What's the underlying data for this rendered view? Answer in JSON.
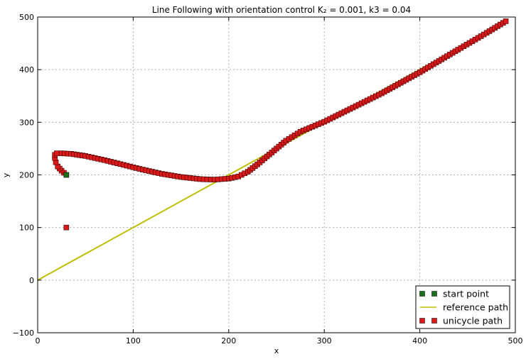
{
  "chart_data": {
    "type": "scatter",
    "title": "Line Following with orientation control K₂ = 0.001, k3 = 0.04",
    "xlabel": "x",
    "ylabel": "y",
    "xlim": [
      0,
      500
    ],
    "ylim": [
      -100,
      500
    ],
    "xticks": [
      "0",
      "100",
      "200",
      "300",
      "400",
      "500"
    ],
    "yticks": [
      "−100",
      "0",
      "100",
      "200",
      "300",
      "400",
      "500"
    ],
    "grid": true,
    "legend_position": "lower-right",
    "legend": [
      "start point",
      "reference path",
      "unicycle path"
    ],
    "series": [
      {
        "name": "start point",
        "style": "square-markers",
        "color": "#1a6e1a",
        "x": [
          30,
          30
        ],
        "y": [
          100,
          200
        ]
      },
      {
        "name": "reference path",
        "style": "line",
        "color": "#bfbf00",
        "x": [
          0,
          450
        ],
        "y": [
          0,
          450
        ]
      },
      {
        "name": "unicycle path",
        "style": "square-markers",
        "color": "#dd1a1a",
        "x": [
          30,
          25,
          21,
          19,
          18,
          18,
          20,
          25,
          35,
          50,
          70,
          90,
          110,
          130,
          150,
          170,
          185,
          200,
          210,
          220,
          230,
          240,
          250,
          260,
          275,
          300,
          330,
          360,
          400,
          440,
          470,
          490
        ],
        "y": [
          200,
          208,
          216,
          224,
          232,
          238,
          241,
          241,
          240,
          236,
          228,
          219,
          210,
          202,
          196,
          192,
          191,
          193,
          197,
          206,
          220,
          235,
          250,
          265,
          282,
          301,
          328,
          355,
          395,
          438,
          470,
          492
        ]
      }
    ]
  }
}
